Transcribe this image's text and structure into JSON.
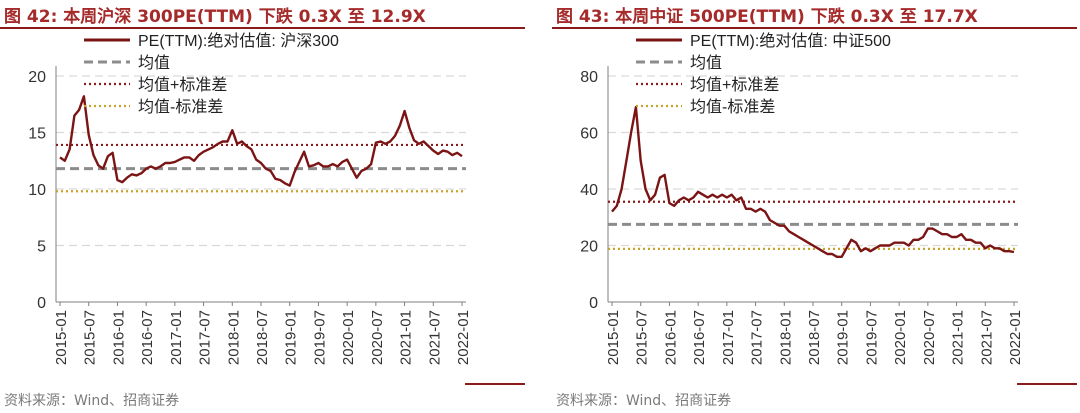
{
  "panels": [
    {
      "figure_title": "图 42:  本周沪深 300PE(TTM) 下跌 0.3X 至 12.9X",
      "source": "资料来源：Wind、招商证券"
    },
    {
      "figure_title": "图 43:  本周中证 500PE(TTM) 下跌 0.3X 至 17.7X",
      "source": "资料来源：Wind、招商证券"
    }
  ],
  "colors": {
    "pe_line": "#7b1414",
    "mean": "#8c8c8c",
    "plus_std": "#8b1a1a",
    "minus_std": "#c9a227",
    "grid": "#d9d9d9",
    "title": "#a52a2a"
  },
  "chart_data": [
    {
      "type": "line",
      "x_tick_labels": [
        "2015-01",
        "2015-07",
        "2016-01",
        "2016-07",
        "2017-01",
        "2017-07",
        "2018-01",
        "2018-07",
        "2019-01",
        "2019-07",
        "2020-01",
        "2020-07",
        "2021-01",
        "2021-07",
        "2022-01"
      ],
      "ylim": [
        0,
        20
      ],
      "y_ticks": [
        0,
        5,
        10,
        15,
        20
      ],
      "grid": "horizontal dashed",
      "legend_position": "top",
      "series": [
        {
          "name": "PE(TTM):绝对估值: 沪深300",
          "style": "solid",
          "x": [
            "2015-01",
            "2015-02",
            "2015-03",
            "2015-04",
            "2015-05",
            "2015-06",
            "2015-07",
            "2015-08",
            "2015-09",
            "2015-10",
            "2015-11",
            "2015-12",
            "2016-01",
            "2016-02",
            "2016-03",
            "2016-04",
            "2016-05",
            "2016-06",
            "2016-07",
            "2016-08",
            "2016-09",
            "2016-10",
            "2016-11",
            "2016-12",
            "2017-01",
            "2017-02",
            "2017-03",
            "2017-04",
            "2017-05",
            "2017-06",
            "2017-07",
            "2017-08",
            "2017-09",
            "2017-10",
            "2017-11",
            "2017-12",
            "2018-01",
            "2018-02",
            "2018-03",
            "2018-04",
            "2018-05",
            "2018-06",
            "2018-07",
            "2018-08",
            "2018-09",
            "2018-10",
            "2018-11",
            "2018-12",
            "2019-01",
            "2019-02",
            "2019-03",
            "2019-04",
            "2019-05",
            "2019-06",
            "2019-07",
            "2019-08",
            "2019-09",
            "2019-10",
            "2019-11",
            "2019-12",
            "2020-01",
            "2020-02",
            "2020-03",
            "2020-04",
            "2020-05",
            "2020-06",
            "2020-07",
            "2020-08",
            "2020-09",
            "2020-10",
            "2020-11",
            "2020-12",
            "2021-01",
            "2021-02",
            "2021-03",
            "2021-04",
            "2021-05",
            "2021-06",
            "2021-07",
            "2021-08",
            "2021-09",
            "2021-10",
            "2021-11",
            "2021-12",
            "2022-01"
          ],
          "values": [
            12.8,
            12.5,
            13.5,
            16.5,
            17.0,
            18.2,
            14.8,
            13.0,
            12.1,
            11.8,
            12.9,
            13.2,
            10.8,
            10.6,
            11.0,
            11.3,
            11.2,
            11.4,
            11.8,
            12.0,
            11.8,
            12.0,
            12.3,
            12.3,
            12.4,
            12.6,
            12.8,
            12.8,
            12.5,
            13.0,
            13.3,
            13.5,
            13.7,
            14.0,
            14.2,
            14.2,
            15.2,
            14.0,
            14.2,
            13.8,
            13.5,
            12.6,
            12.3,
            11.8,
            11.6,
            10.9,
            10.8,
            10.5,
            10.3,
            11.5,
            12.4,
            13.3,
            12.0,
            12.1,
            12.3,
            12.0,
            12.0,
            12.2,
            12.0,
            12.4,
            12.6,
            11.8,
            11.0,
            11.6,
            11.8,
            12.2,
            14.1,
            14.2,
            14.0,
            14.2,
            14.7,
            15.6,
            16.9,
            15.4,
            14.3,
            14.0,
            14.2,
            13.8,
            13.4,
            13.1,
            13.4,
            13.3,
            13.0,
            13.2,
            12.9
          ]
        },
        {
          "name": "均值",
          "style": "dashed",
          "value": 11.8
        },
        {
          "name": "均值+标准差",
          "style": "dotted",
          "value": 13.9
        },
        {
          "name": "均值-标准差",
          "style": "dotted",
          "value": 9.8
        }
      ]
    },
    {
      "type": "line",
      "x_tick_labels": [
        "2015-01",
        "2015-07",
        "2016-01",
        "2016-07",
        "2017-01",
        "2017-07",
        "2018-01",
        "2018-07",
        "2019-01",
        "2019-07",
        "2020-01",
        "2020-07",
        "2021-01",
        "2021-07",
        "2022-01"
      ],
      "ylim": [
        0,
        80
      ],
      "y_ticks": [
        0,
        20,
        40,
        60,
        80
      ],
      "grid": "horizontal dashed",
      "legend_position": "top",
      "series": [
        {
          "name": "PE(TTM):绝对估值: 中证500",
          "style": "solid",
          "x": [
            "2015-01",
            "2015-02",
            "2015-03",
            "2015-04",
            "2015-05",
            "2015-06",
            "2015-07",
            "2015-08",
            "2015-09",
            "2015-10",
            "2015-11",
            "2015-12",
            "2016-01",
            "2016-02",
            "2016-03",
            "2016-04",
            "2016-05",
            "2016-06",
            "2016-07",
            "2016-08",
            "2016-09",
            "2016-10",
            "2016-11",
            "2016-12",
            "2017-01",
            "2017-02",
            "2017-03",
            "2017-04",
            "2017-05",
            "2017-06",
            "2017-07",
            "2017-08",
            "2017-09",
            "2017-10",
            "2017-11",
            "2017-12",
            "2018-01",
            "2018-02",
            "2018-03",
            "2018-04",
            "2018-05",
            "2018-06",
            "2018-07",
            "2018-08",
            "2018-09",
            "2018-10",
            "2018-11",
            "2018-12",
            "2019-01",
            "2019-02",
            "2019-03",
            "2019-04",
            "2019-05",
            "2019-06",
            "2019-07",
            "2019-08",
            "2019-09",
            "2019-10",
            "2019-11",
            "2019-12",
            "2020-01",
            "2020-02",
            "2020-03",
            "2020-04",
            "2020-05",
            "2020-06",
            "2020-07",
            "2020-08",
            "2020-09",
            "2020-10",
            "2020-11",
            "2020-12",
            "2021-01",
            "2021-02",
            "2021-03",
            "2021-04",
            "2021-05",
            "2021-06",
            "2021-07",
            "2021-08",
            "2021-09",
            "2021-10",
            "2021-11",
            "2021-12",
            "2022-01"
          ],
          "values": [
            32,
            34,
            40,
            50,
            60,
            69,
            50,
            40,
            36,
            38,
            44,
            45,
            35,
            34,
            36,
            37,
            36,
            37,
            39,
            38,
            37,
            38,
            37,
            38,
            37,
            38,
            36,
            37,
            33,
            33,
            32,
            33,
            32,
            29,
            28,
            27,
            27,
            25,
            24,
            23,
            22,
            21,
            20,
            19,
            18,
            17,
            17,
            16,
            16,
            19,
            22,
            21,
            18,
            19,
            18,
            19,
            20,
            20,
            20,
            21,
            21,
            21,
            20,
            22,
            22,
            23,
            26,
            26,
            25,
            24,
            24,
            23,
            23,
            24,
            22,
            22,
            21,
            21,
            19,
            20,
            19,
            19,
            18,
            18,
            17.7
          ]
        },
        {
          "name": "均值",
          "style": "dashed",
          "value": 27.5
        },
        {
          "name": "均值+标准差",
          "style": "dotted",
          "value": 35.5
        },
        {
          "name": "均值-标准差",
          "style": "dotted",
          "value": 18.8
        }
      ]
    }
  ]
}
